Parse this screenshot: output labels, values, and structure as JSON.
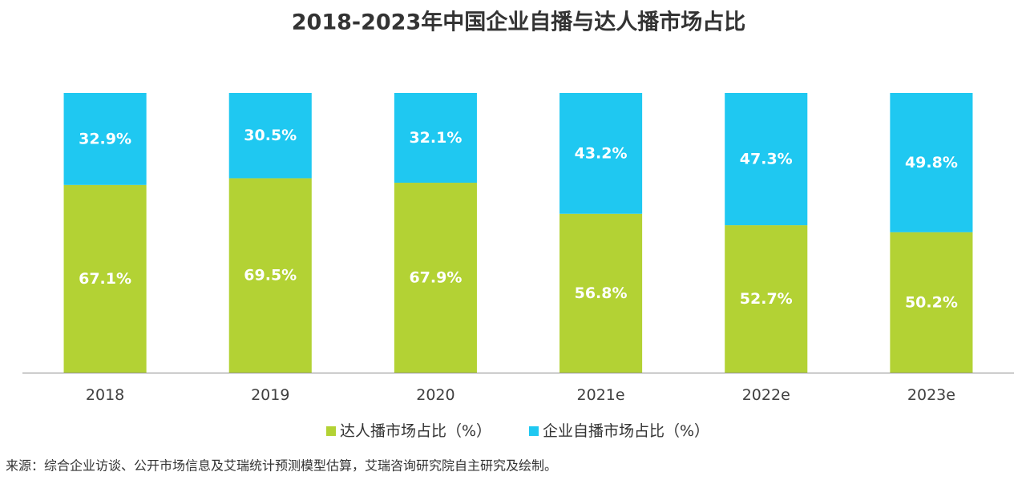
{
  "source": "来源：综合企业访谈、公开市场信息及艾瑞统计预测模型估算，艾瑞咨询研究院自主研究及绘制。",
  "chart_data": {
    "type": "bar",
    "stacked": true,
    "title": "2018-2023年中国企业自播与达人播市场占比",
    "categories": [
      "2018",
      "2019",
      "2020",
      "2021e",
      "2022e",
      "2023e"
    ],
    "series": [
      {
        "name": "达人播市场占比（%）",
        "values": [
          67.1,
          69.5,
          67.9,
          56.8,
          52.7,
          50.2
        ],
        "labels": [
          "67.1%",
          "69.5%",
          "67.9%",
          "56.8%",
          "52.7%",
          "50.2%"
        ],
        "color": "#B3D234"
      },
      {
        "name": "企业自播市场占比（%）",
        "values": [
          32.9,
          30.5,
          32.1,
          43.2,
          47.3,
          49.8
        ],
        "labels": [
          "32.9%",
          "30.5%",
          "32.1%",
          "43.2%",
          "47.3%",
          "49.8%"
        ],
        "color": "#1FC8F1"
      }
    ],
    "ylim": [
      0,
      100
    ],
    "grid": false,
    "legend": "bottom"
  }
}
